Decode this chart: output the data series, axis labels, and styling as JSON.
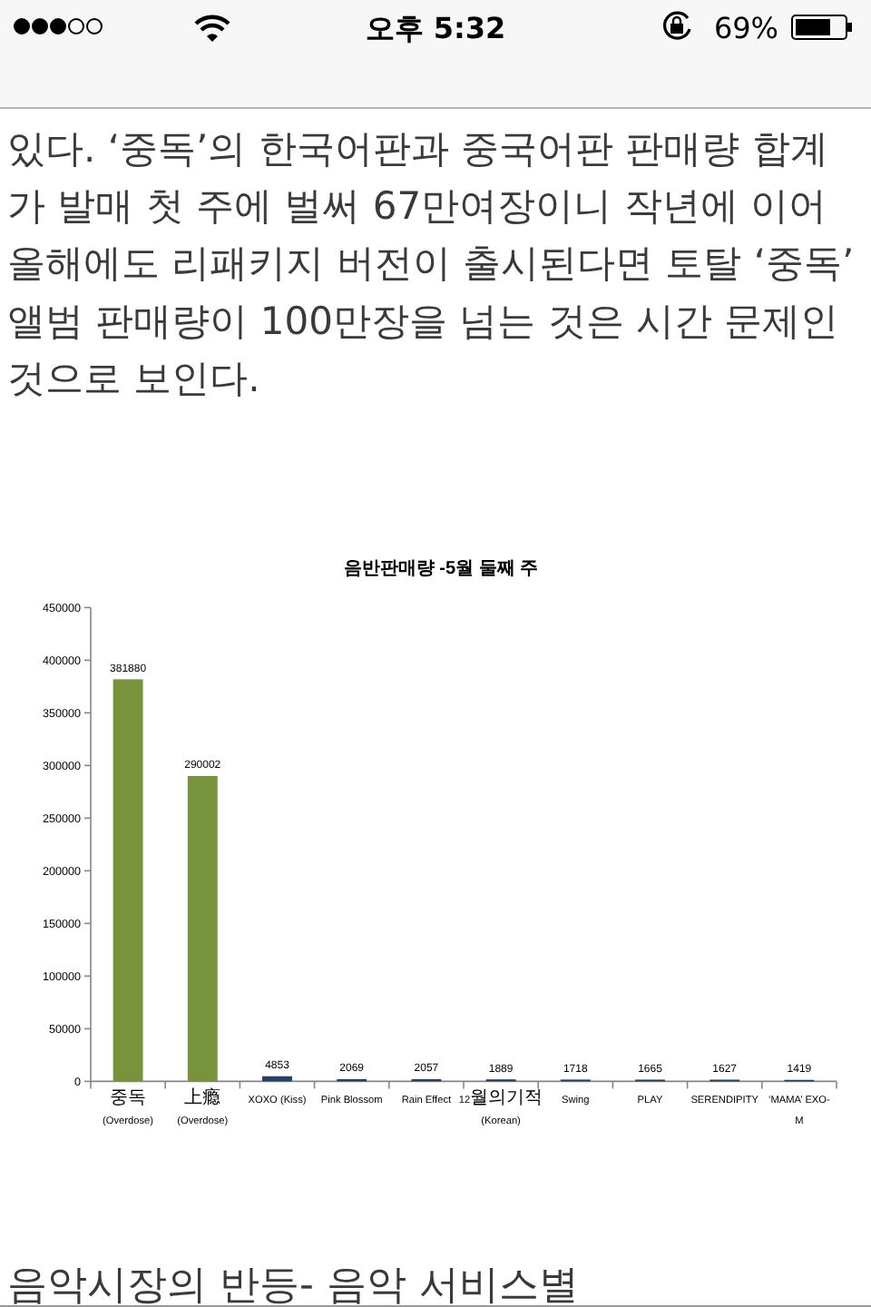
{
  "chart_data": {
    "type": "bar",
    "title": "음반판매량 -5월 둘째 주",
    "categories": [
      "중독 (Overdose)",
      "上瘾 (Overdose)",
      "XOXO (Kiss)",
      "Pink Blossom",
      "Rain Effect",
      "12월의기적 (Korean)",
      "Swing",
      "PLAY",
      "SERENDIPITY",
      "‘MAMA’ EXO-M"
    ],
    "values": [
      381880,
      290002,
      4853,
      2069,
      2057,
      1889,
      1718,
      1665,
      1627,
      1419
    ],
    "colors": [
      "#77933c",
      "#77933c",
      "#254061",
      "#254061",
      "#254061",
      "#254061",
      "#254061",
      "#254061",
      "#254061",
      "#254061"
    ],
    "ylim": [
      0,
      450000
    ],
    "yticks": [
      0,
      50000,
      100000,
      150000,
      200000,
      250000,
      300000,
      350000,
      400000,
      450000
    ],
    "data_labels": true,
    "annotations": [
      "오후 5:32",
      "69%",
      "있다. ‘중독’의 한국어판과 중국어판 판매량 합계",
      "가 발매 첫 주에 벌써 67만여장이니 작년에 이어",
      "올해에도 리패키지 버전이 출시된다면 토탈 ‘중독’",
      "앨범 판매량이 100만장을 넘는 것은 시간 문제인",
      "것으로 보인다.",
      "음악시장의 반등- 음악 서비스별"
    ]
  }
}
